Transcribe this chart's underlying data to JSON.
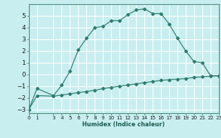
{
  "xlabel": "Humidex (Indice chaleur)",
  "bg_color": "#c8eef0",
  "grid_color": "#ffffff",
  "line_color": "#2e7d6e",
  "upper_x": [
    0,
    1,
    3,
    4,
    5,
    6,
    7,
    8,
    9,
    10,
    11,
    12,
    13,
    14,
    15,
    16,
    17,
    18,
    19,
    20,
    21,
    22,
    23
  ],
  "upper_y": [
    -3.0,
    -1.2,
    -1.8,
    -0.9,
    0.3,
    2.1,
    3.1,
    4.0,
    4.1,
    4.6,
    4.6,
    5.1,
    5.5,
    5.6,
    5.2,
    5.2,
    4.3,
    3.1,
    2.0,
    1.1,
    1.0,
    -0.1,
    -0.1
  ],
  "lower_x": [
    0,
    1,
    3,
    4,
    5,
    6,
    7,
    8,
    9,
    10,
    11,
    12,
    13,
    14,
    15,
    16,
    17,
    18,
    19,
    20,
    21,
    22,
    23
  ],
  "lower_y": [
    -3.0,
    -1.8,
    -1.85,
    -1.75,
    -1.65,
    -1.55,
    -1.45,
    -1.35,
    -1.2,
    -1.1,
    -1.0,
    -0.9,
    -0.8,
    -0.7,
    -0.6,
    -0.5,
    -0.45,
    -0.4,
    -0.35,
    -0.25,
    -0.2,
    -0.15,
    -0.1
  ],
  "xlim": [
    0,
    23
  ],
  "ylim": [
    -3.3,
    6.0
  ],
  "yticks": [
    -3,
    -2,
    -1,
    0,
    1,
    2,
    3,
    4,
    5
  ],
  "xticks": [
    0,
    1,
    3,
    4,
    5,
    6,
    7,
    8,
    9,
    10,
    11,
    12,
    13,
    14,
    15,
    16,
    17,
    18,
    19,
    20,
    21,
    22,
    23
  ],
  "xlabel_fontsize": 6.0,
  "ytick_fontsize": 6.5,
  "xtick_fontsize": 5.2
}
